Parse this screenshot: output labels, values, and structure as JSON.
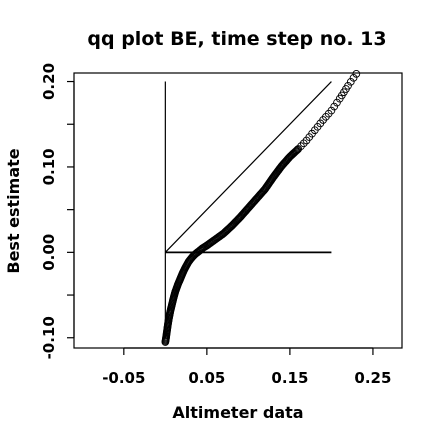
{
  "chart_data": {
    "type": "scatter",
    "title": "qq plot BE, time step no. 13",
    "xlabel": "Altimeter data",
    "ylabel": "Best estimate",
    "xlim": [
      -0.11,
      0.285
    ],
    "ylim": [
      -0.112,
      0.21
    ],
    "xticks": [
      -0.05,
      0.05,
      0.15,
      0.25
    ],
    "xtick_labels": [
      "-0.05",
      "0.05",
      "0.15",
      "0.25"
    ],
    "yticks": [
      -0.1,
      0.0,
      0.1,
      0.2
    ],
    "ytick_labels": [
      "-0.10",
      "0.00",
      "0.10",
      "0.20"
    ],
    "y_minor_ticks": [
      -0.05,
      0.05,
      0.15
    ],
    "grid": false,
    "legend": "none",
    "marker": "open-circle",
    "colors": {
      "points": "#000000",
      "lines": "#000000",
      "background": "#ffffff"
    },
    "reference_lines": [
      {
        "name": "identity",
        "x": [
          0,
          0.2
        ],
        "y": [
          0,
          0.2
        ]
      },
      {
        "name": "vertical",
        "x": [
          0,
          0
        ],
        "y": [
          -0.1,
          0.2
        ]
      },
      {
        "name": "horizontal",
        "x": [
          0,
          0.2
        ],
        "y": [
          0,
          0
        ]
      }
    ],
    "qq_curve": {
      "x": [
        0.0,
        0.001,
        0.002,
        0.003,
        0.004,
        0.006,
        0.008,
        0.01,
        0.012,
        0.015,
        0.018,
        0.021,
        0.024,
        0.028,
        0.032,
        0.036,
        0.04,
        0.045,
        0.05,
        0.06,
        0.07,
        0.08,
        0.09,
        0.1,
        0.11,
        0.12,
        0.13,
        0.14,
        0.15,
        0.16,
        0.17,
        0.18,
        0.19,
        0.2,
        0.21,
        0.22,
        0.23
      ],
      "y": [
        -0.105,
        -0.099,
        -0.092,
        -0.085,
        -0.079,
        -0.069,
        -0.061,
        -0.053,
        -0.046,
        -0.038,
        -0.031,
        -0.024,
        -0.018,
        -0.011,
        -0.006,
        -0.002,
        0.001,
        0.005,
        0.008,
        0.015,
        0.022,
        0.031,
        0.041,
        0.052,
        0.063,
        0.074,
        0.088,
        0.101,
        0.112,
        0.121,
        0.131,
        0.143,
        0.155,
        0.166,
        0.18,
        0.195,
        0.209
      ]
    }
  }
}
